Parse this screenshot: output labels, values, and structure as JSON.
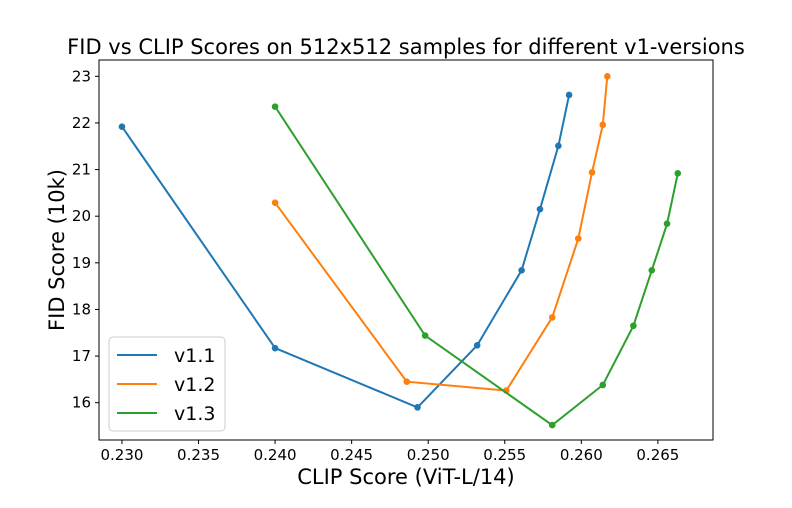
{
  "chart_data": {
    "type": "line",
    "title": "FID vs CLIP Scores on 512x512 samples for different v1-versions",
    "xlabel": "CLIP Score (ViT-L/14)",
    "ylabel": "FID Score (10k)",
    "xlim": [
      0.2285,
      0.2686
    ],
    "ylim": [
      15.2,
      23.35
    ],
    "xticks": [
      "0.230",
      "0.235",
      "0.240",
      "0.245",
      "0.250",
      "0.255",
      "0.260",
      "0.265"
    ],
    "xtick_values": [
      0.23,
      0.235,
      0.24,
      0.245,
      0.25,
      0.255,
      0.26,
      0.265
    ],
    "yticks": [
      "16",
      "17",
      "18",
      "19",
      "20",
      "21",
      "22",
      "23"
    ],
    "ytick_values": [
      16,
      17,
      18,
      19,
      20,
      21,
      22,
      23
    ],
    "grid": false,
    "legend_position": "lower-left",
    "series": [
      {
        "name": "v1.1",
        "color": "#1f77b4",
        "x": [
          0.23,
          0.24,
          0.2493,
          0.2532,
          0.2561,
          0.2573,
          0.2585,
          0.2592
        ],
        "y": [
          21.92,
          17.17,
          15.9,
          17.23,
          18.84,
          20.15,
          21.51,
          22.6
        ]
      },
      {
        "name": "v1.2",
        "color": "#ff7f0e",
        "x": [
          0.24,
          0.2486,
          0.2551,
          0.2581,
          0.2598,
          0.2607,
          0.2614,
          0.2617
        ],
        "y": [
          20.29,
          16.45,
          16.26,
          17.83,
          19.52,
          20.94,
          21.96,
          23.0
        ]
      },
      {
        "name": "v1.3",
        "color": "#2ca02c",
        "x": [
          0.24,
          0.2498,
          0.2581,
          0.2614,
          0.2634,
          0.2646,
          0.2656,
          0.2663
        ],
        "y": [
          22.35,
          17.44,
          15.52,
          16.38,
          17.65,
          18.84,
          19.84,
          20.92
        ]
      }
    ]
  }
}
